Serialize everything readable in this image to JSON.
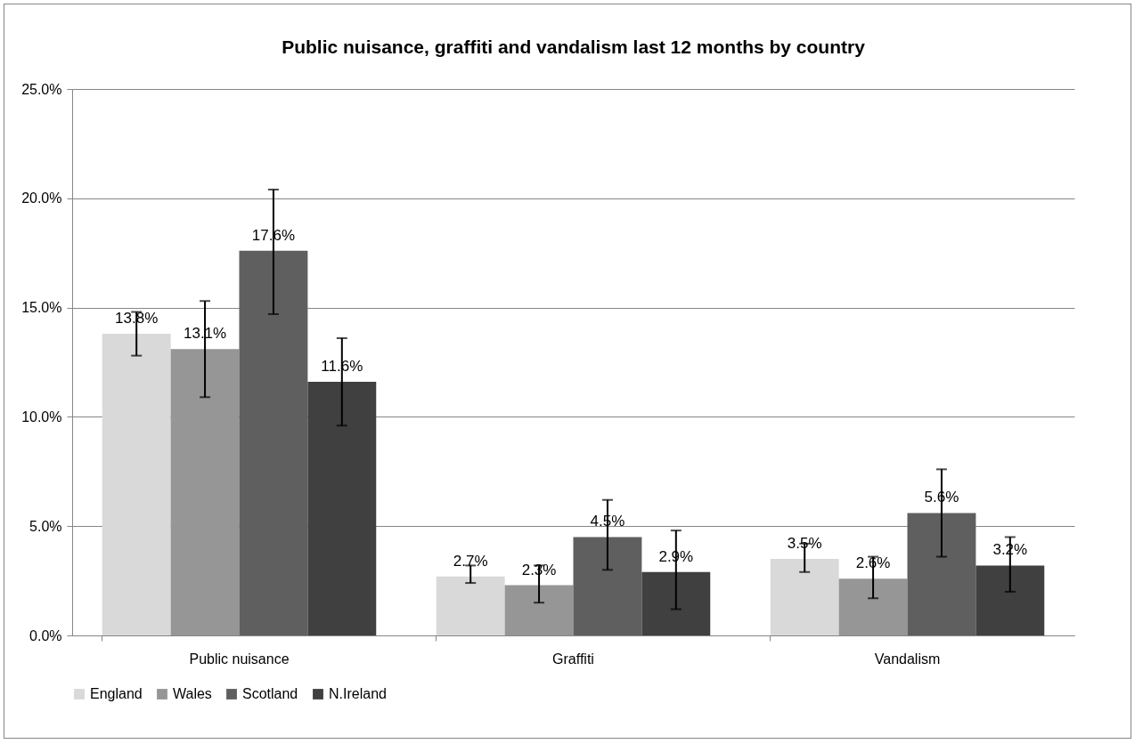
{
  "chart_data": {
    "type": "bar",
    "title": "Public nuisance, graffiti and vandalism last 12 months by country",
    "categories": [
      "Public nuisance",
      "Graffiti",
      "Vandalism"
    ],
    "series": [
      {
        "name": "England",
        "color": "#d9d9d9",
        "values": [
          13.8,
          2.7,
          3.5
        ],
        "errors": [
          [
            12.8,
            14.8
          ],
          [
            2.4,
            3.2
          ],
          [
            2.9,
            4.2
          ]
        ],
        "value_labels": [
          "13.8%",
          "2.7%",
          "3.5%"
        ]
      },
      {
        "name": "Wales",
        "color": "#969696",
        "values": [
          13.1,
          2.3,
          2.6
        ],
        "errors": [
          [
            10.9,
            15.3
          ],
          [
            1.5,
            3.2
          ],
          [
            1.7,
            3.6
          ]
        ],
        "value_labels": [
          "13.1%",
          "2.3%",
          "2.6%"
        ]
      },
      {
        "name": "Scotland",
        "color": "#5f5f5f",
        "values": [
          17.6,
          4.5,
          5.6
        ],
        "errors": [
          [
            14.7,
            20.4
          ],
          [
            3.0,
            6.2
          ],
          [
            3.6,
            7.6
          ]
        ],
        "value_labels": [
          "17.6%",
          "4.5%",
          "5.6%"
        ]
      },
      {
        "name": "N.Ireland",
        "color": "#404040",
        "values": [
          11.6,
          2.9,
          3.2
        ],
        "errors": [
          [
            9.6,
            13.6
          ],
          [
            1.2,
            4.8
          ],
          [
            2.0,
            4.5
          ]
        ],
        "value_labels": [
          "11.6%",
          "2.9%",
          "3.2%"
        ]
      }
    ],
    "ylim": [
      0,
      25
    ],
    "yticks": [
      {
        "value": 0,
        "label": "0.0%"
      },
      {
        "value": 5,
        "label": "5.0%"
      },
      {
        "value": 10,
        "label": "10.0%"
      },
      {
        "value": 15,
        "label": "15.0%"
      },
      {
        "value": 20,
        "label": "20.0%"
      },
      {
        "value": 25,
        "label": "25.0%"
      }
    ],
    "grid": "y",
    "legend": "bottom"
  }
}
